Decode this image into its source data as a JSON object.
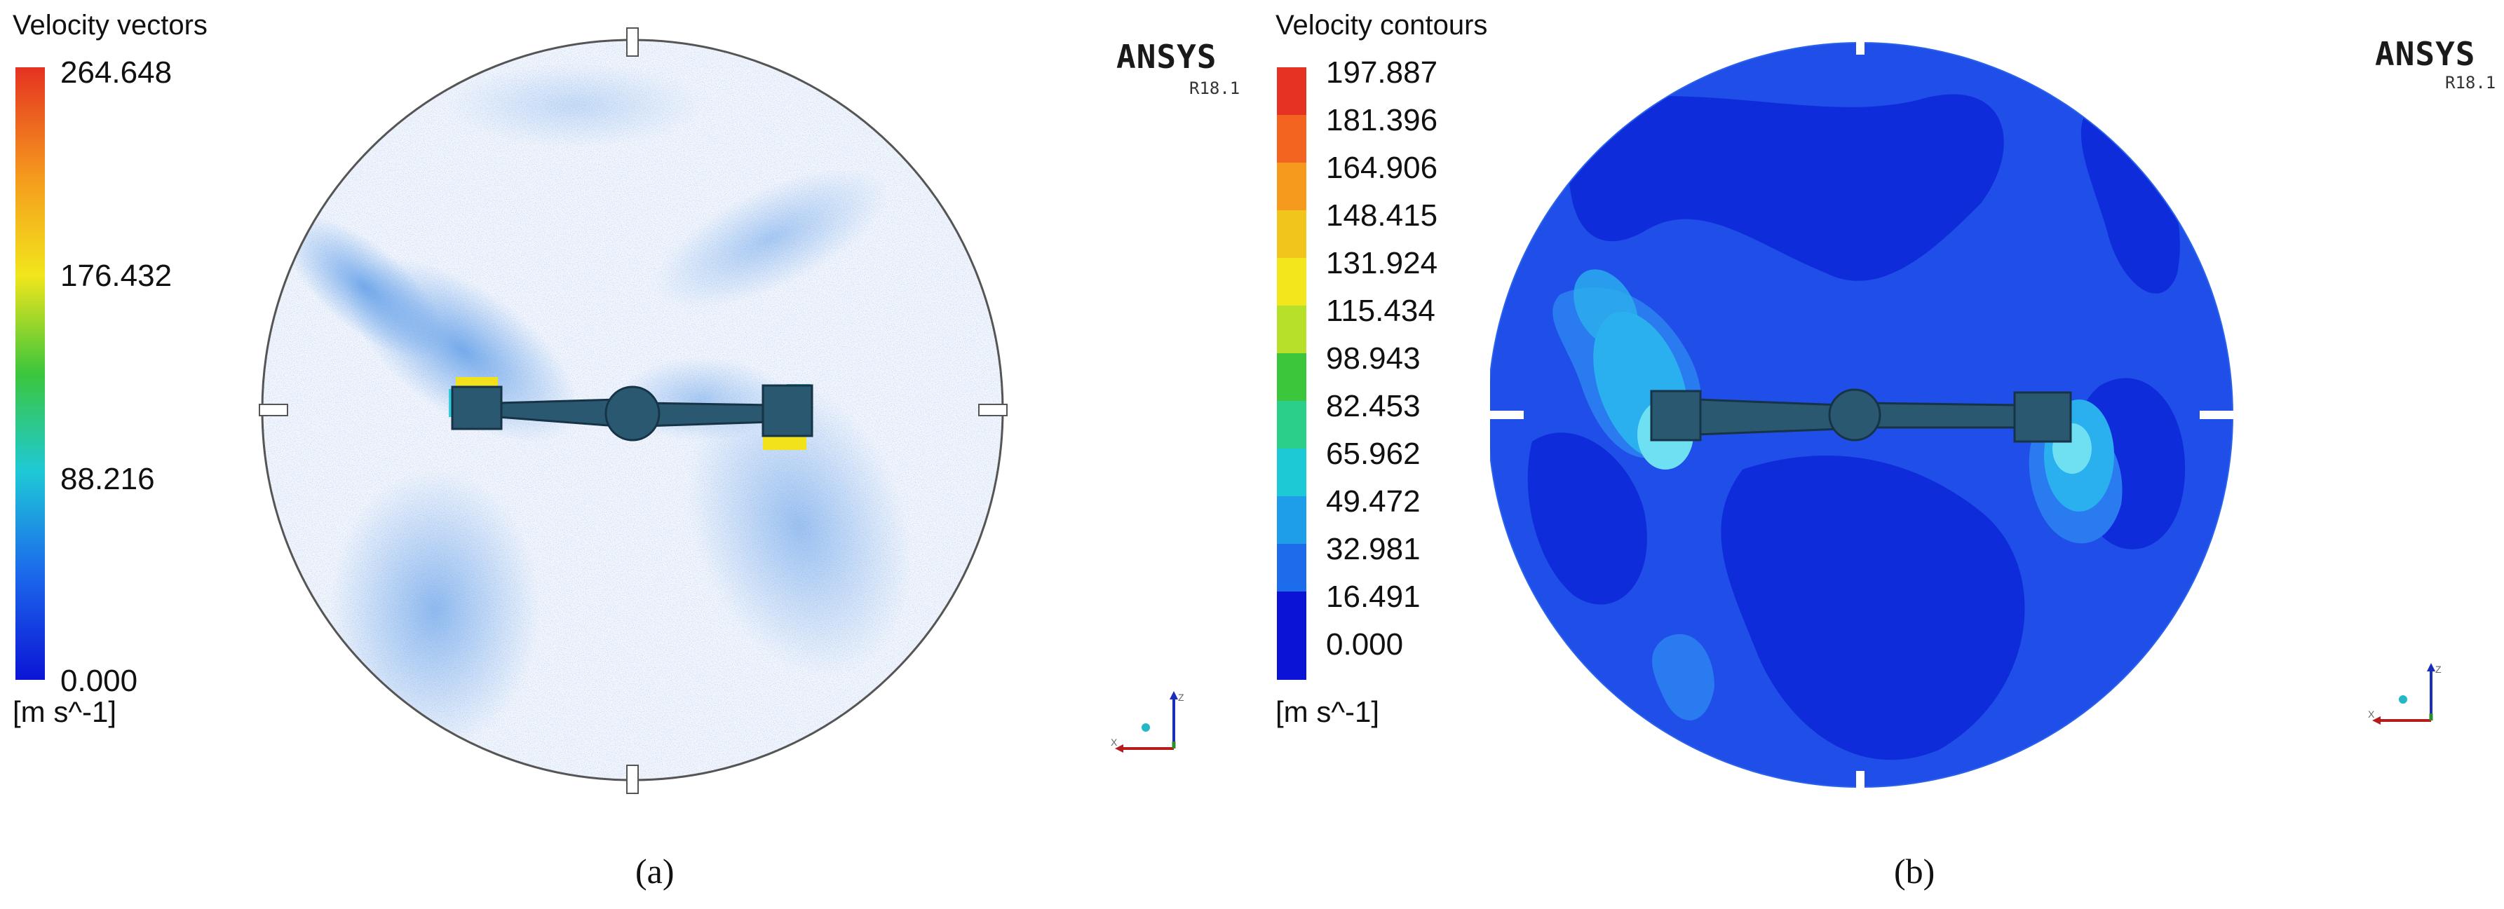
{
  "panel_a": {
    "title": "Velocity vectors",
    "ticks": [
      "264.648",
      "176.432",
      "88.216",
      "0.000"
    ],
    "unit": "[m s^-1]",
    "brand": "ANSYS",
    "version": "R18.1",
    "caption": "(a)"
  },
  "panel_b": {
    "title": "Velocity contours",
    "ticks": [
      "197.887",
      "181.396",
      "164.906",
      "148.415",
      "131.924",
      "115.434",
      "98.943",
      "82.453",
      "65.962",
      "49.472",
      "32.981",
      "16.491",
      "0.000"
    ],
    "unit": "[m s^-1]",
    "brand": "ANSYS",
    "version": "R18.1",
    "caption": "(b)"
  },
  "axis_labels": {
    "vertical": "Z",
    "horizontal": "X"
  },
  "colors": {
    "scale_top": "#e53222",
    "scale_orange": "#f59a1d",
    "scale_yellow": "#f2e61c",
    "scale_green": "#3cc63c",
    "scale_cyan": "#1ec9d6",
    "scale_blue": "#1c4cea",
    "scale_bottom": "#0b14d6",
    "impeller": "#2a5870",
    "contour_base": "#0f2cdb",
    "contour_mid": "#2a6ff0"
  }
}
